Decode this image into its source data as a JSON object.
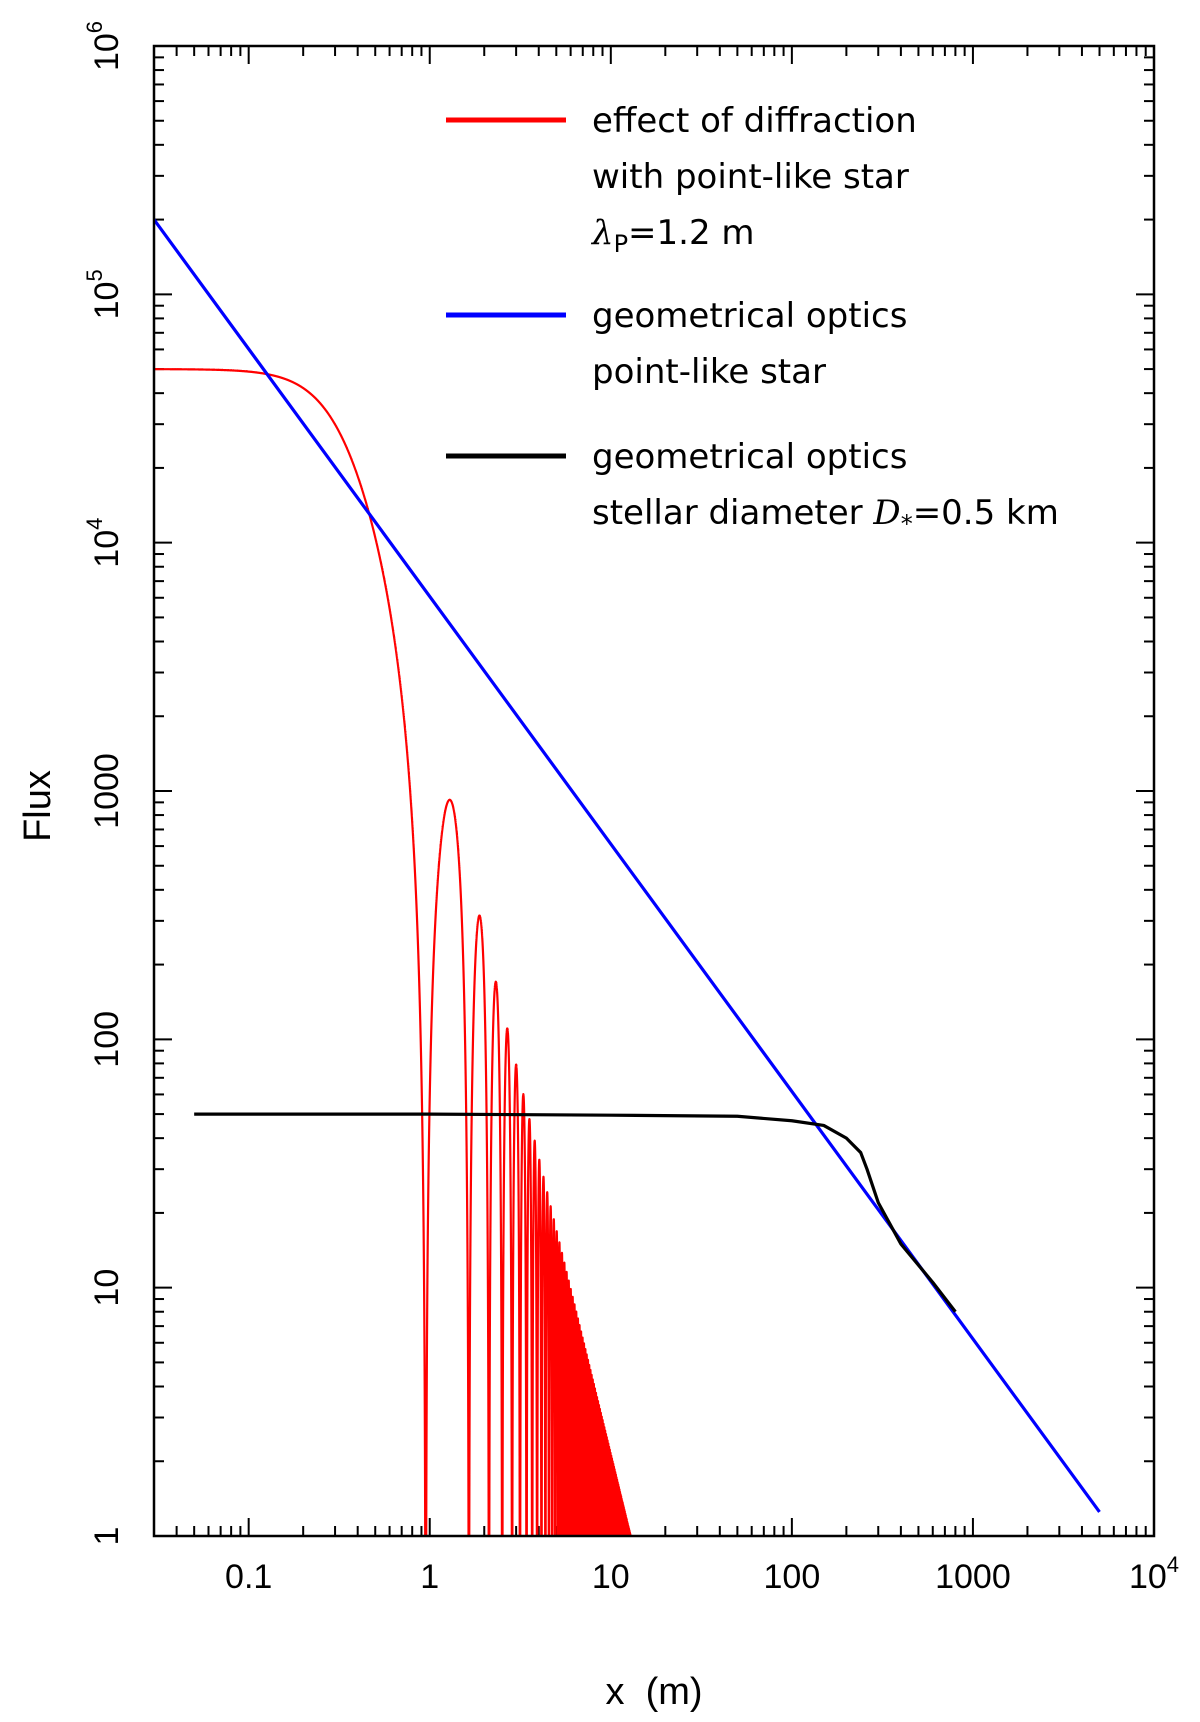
{
  "chart_data": {
    "type": "line",
    "title": "",
    "xlabel": "x  (m)",
    "ylabel": "Flux",
    "xscale": "log",
    "yscale": "log",
    "xlim": [
      0.03,
      10000
    ],
    "ylim": [
      1,
      1000000
    ],
    "x_tick_labels": [
      {
        "value": 0.1,
        "mantissa": "0.1",
        "exp": ""
      },
      {
        "value": 1,
        "mantissa": "1",
        "exp": ""
      },
      {
        "value": 10,
        "mantissa": "10",
        "exp": ""
      },
      {
        "value": 100,
        "mantissa": "100",
        "exp": ""
      },
      {
        "value": 1000,
        "mantissa": "1000",
        "exp": ""
      },
      {
        "value": 10000,
        "mantissa": "10",
        "exp": "4"
      }
    ],
    "y_tick_labels": [
      {
        "value": 1,
        "mantissa": "1",
        "exp": ""
      },
      {
        "value": 10,
        "mantissa": "10",
        "exp": ""
      },
      {
        "value": 100,
        "mantissa": "100",
        "exp": ""
      },
      {
        "value": 1000,
        "mantissa": "1000",
        "exp": ""
      },
      {
        "value": 10000,
        "mantissa": "10",
        "exp": "4"
      },
      {
        "value": 100000,
        "mantissa": "10",
        "exp": "5"
      },
      {
        "value": 1000000,
        "mantissa": "10",
        "exp": "6"
      }
    ],
    "legend_position": "top-right",
    "series": [
      {
        "name": "effect of diffraction with point-like star",
        "legend_lines": [
          "effect of diffraction",
          "with point-like star"
        ],
        "legend_param": {
          "symbol": "λ",
          "subscript": "P",
          "value": "=1.2 m"
        },
        "color": "#ff0000",
        "model": "fresnel_diffraction",
        "plateau_flux": 50000,
        "first_zero_x": 0.95,
        "x_range": [
          0.03,
          50
        ]
      },
      {
        "name": "geometrical optics point-like star",
        "legend_lines": [
          "geometrical optics",
          "point-like star"
        ],
        "color": "#0000ff",
        "model": "power_law",
        "x": [
          0.03,
          5000
        ],
        "y": [
          200000,
          1.25
        ]
      },
      {
        "name": "geometrical optics stellar diameter D*=0.5 km",
        "legend_lines": [
          "geometrical optics"
        ],
        "legend_param": {
          "prefix": "stellar diameter ",
          "symbol": "D",
          "subscript": "*",
          "value": "=0.5 km"
        },
        "color": "#000000",
        "x": [
          0.05,
          1,
          10,
          50,
          100,
          150,
          200,
          240,
          260,
          300,
          400,
          600,
          800
        ],
        "y": [
          50,
          50,
          49.5,
          49,
          47,
          45,
          40,
          35,
          30,
          22,
          15,
          10.5,
          8
        ]
      }
    ]
  }
}
